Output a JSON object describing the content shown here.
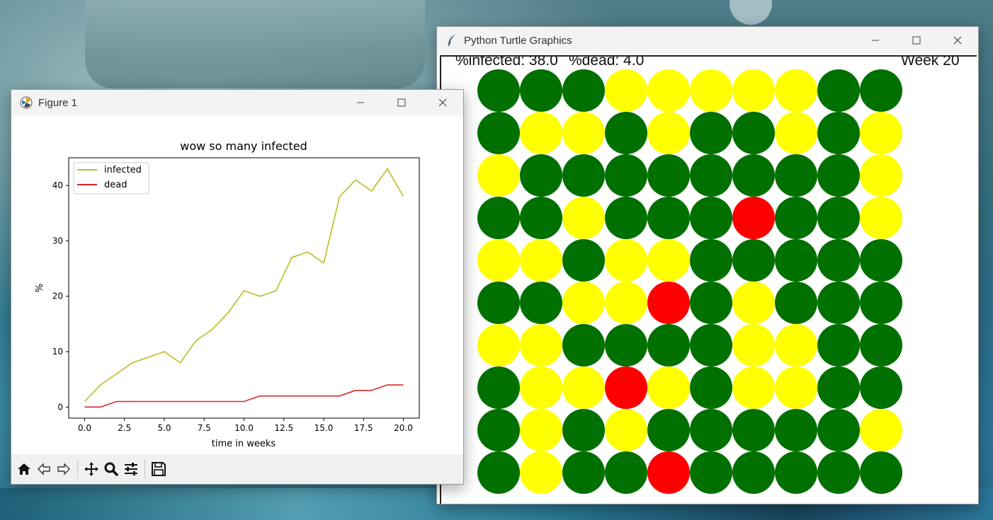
{
  "figure_window": {
    "title": "Figure 1",
    "toolbar": [
      "home-icon",
      "back-arrow-icon",
      "forward-arrow-icon",
      "pan-icon",
      "zoom-icon",
      "subplots-icon",
      "save-icon"
    ]
  },
  "turtle_window": {
    "title": "Python Turtle Graphics",
    "infected_text": "%infected: 38.0",
    "dead_text": "%dead: 4.0",
    "week_text": "Week 20",
    "colors": {
      "green": "#007000",
      "yellow": "#ffff00",
      "red": "#ff0000"
    },
    "grid": [
      [
        "G",
        "G",
        "G",
        "Y",
        "Y",
        "Y",
        "Y",
        "Y",
        "G",
        "G"
      ],
      [
        "G",
        "Y",
        "Y",
        "G",
        "Y",
        "G",
        "G",
        "Y",
        "G",
        "Y"
      ],
      [
        "Y",
        "G",
        "G",
        "G",
        "G",
        "G",
        "G",
        "G",
        "G",
        "Y"
      ],
      [
        "G",
        "G",
        "Y",
        "G",
        "G",
        "G",
        "R",
        "G",
        "G",
        "Y"
      ],
      [
        "Y",
        "Y",
        "G",
        "Y",
        "Y",
        "G",
        "G",
        "G",
        "G",
        "G"
      ],
      [
        "G",
        "G",
        "Y",
        "Y",
        "R",
        "G",
        "Y",
        "G",
        "G",
        "G"
      ],
      [
        "Y",
        "Y",
        "G",
        "G",
        "G",
        "G",
        "Y",
        "Y",
        "G",
        "G"
      ],
      [
        "G",
        "Y",
        "Y",
        "R",
        "Y",
        "G",
        "Y",
        "Y",
        "G",
        "G"
      ],
      [
        "G",
        "Y",
        "G",
        "Y",
        "G",
        "G",
        "G",
        "G",
        "G",
        "Y"
      ],
      [
        "G",
        "Y",
        "G",
        "G",
        "R",
        "G",
        "G",
        "G",
        "G",
        "G"
      ]
    ]
  },
  "chart_data": {
    "type": "line",
    "title": "wow so many infected",
    "xlabel": "time in weeks",
    "ylabel": "%",
    "xlim": [
      -1,
      21
    ],
    "ylim": [
      -2,
      45
    ],
    "xticks": [
      0,
      2.5,
      5,
      7.5,
      10,
      12.5,
      15,
      17.5,
      20
    ],
    "xtick_labels": [
      "0.0",
      "2.5",
      "5.0",
      "7.5",
      "10.0",
      "12.5",
      "15.0",
      "17.5",
      "20.0"
    ],
    "yticks": [
      0,
      10,
      20,
      30,
      40
    ],
    "ytick_labels": [
      "0",
      "10",
      "20",
      "30",
      "40"
    ],
    "legend_position": "top-left",
    "x": [
      0,
      1,
      2,
      3,
      4,
      5,
      6,
      7,
      8,
      9,
      10,
      11,
      12,
      13,
      14,
      15,
      16,
      17,
      18,
      19,
      20
    ],
    "series": [
      {
        "name": "infected",
        "color": "#bcbd22",
        "values": [
          1,
          4,
          6,
          8,
          9,
          10,
          8,
          12,
          14,
          17,
          21,
          20,
          21,
          27,
          28,
          26,
          38,
          41,
          39,
          43,
          38
        ]
      },
      {
        "name": "dead",
        "color": "#d62728",
        "values": [
          0,
          0,
          1,
          1,
          1,
          1,
          1,
          1,
          1,
          1,
          1,
          2,
          2,
          2,
          2,
          2,
          2,
          3,
          3,
          4,
          4
        ]
      }
    ]
  }
}
